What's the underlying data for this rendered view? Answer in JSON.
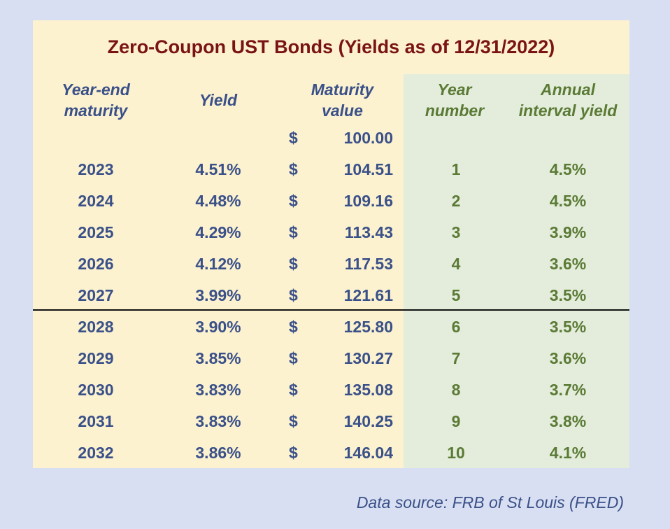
{
  "chart_data": {
    "type": "table",
    "title": "Zero-Coupon UST Bonds (Yields as of 12/31/2022)",
    "columns": [
      {
        "line1": "Year-end",
        "line2": "maturity"
      },
      {
        "line1": "Yield",
        "line2": ""
      },
      {
        "line1": "Maturity",
        "line2": "value"
      },
      {
        "line1": "Year",
        "line2": "number"
      },
      {
        "line1": "Annual",
        "line2": "interval yield"
      }
    ],
    "rows": [
      {
        "year": "",
        "yield": "",
        "dollar": "$",
        "value": "100.00",
        "num": "",
        "annual": ""
      },
      {
        "year": "2023",
        "yield": "4.51%",
        "dollar": "$",
        "value": "104.51",
        "num": "1",
        "annual": "4.5%"
      },
      {
        "year": "2024",
        "yield": "4.48%",
        "dollar": "$",
        "value": "109.16",
        "num": "2",
        "annual": "4.5%"
      },
      {
        "year": "2025",
        "yield": "4.29%",
        "dollar": "$",
        "value": "113.43",
        "num": "3",
        "annual": "3.9%"
      },
      {
        "year": "2026",
        "yield": "4.12%",
        "dollar": "$",
        "value": "117.53",
        "num": "4",
        "annual": "3.6%"
      },
      {
        "year": "2027",
        "yield": "3.99%",
        "dollar": "$",
        "value": "121.61",
        "num": "5",
        "annual": "3.5%"
      },
      {
        "year": "2028",
        "yield": "3.90%",
        "dollar": "$",
        "value": "125.80",
        "num": "6",
        "annual": "3.5%"
      },
      {
        "year": "2029",
        "yield": "3.85%",
        "dollar": "$",
        "value": "130.27",
        "num": "7",
        "annual": "3.6%"
      },
      {
        "year": "2030",
        "yield": "3.83%",
        "dollar": "$",
        "value": "135.08",
        "num": "8",
        "annual": "3.7%"
      },
      {
        "year": "2031",
        "yield": "3.83%",
        "dollar": "$",
        "value": "140.25",
        "num": "9",
        "annual": "3.8%"
      },
      {
        "year": "2032",
        "yield": "3.86%",
        "dollar": "$",
        "value": "146.04",
        "num": "10",
        "annual": "4.1%"
      }
    ],
    "source": "Data source: FRB of St Louis (FRED)"
  },
  "colors": {
    "background": "#d8dff2",
    "panel": "#fcf2d0",
    "green_band": "#e4eddb",
    "title": "#7a1414",
    "blue_text": "#3a5088",
    "green_text": "#5a7a35"
  }
}
